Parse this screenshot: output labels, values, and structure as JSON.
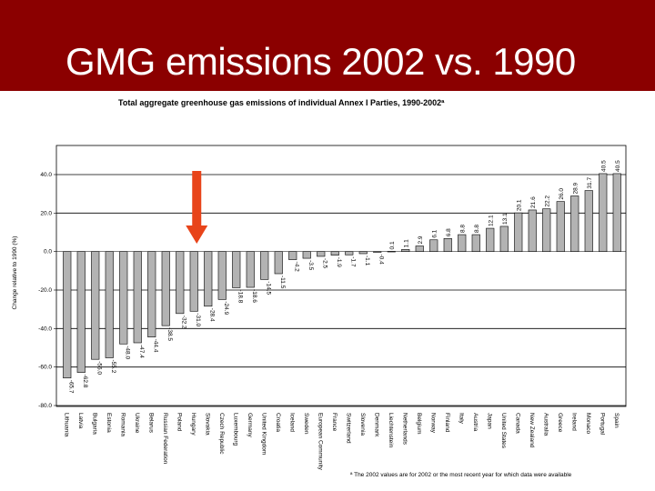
{
  "slide": {
    "title": "GMG emissions 2002 vs. 1990",
    "title_bar_color": "#8b0000"
  },
  "chart_data": {
    "type": "bar",
    "title": "Total aggregate greenhouse gas emissions of individual Annex I Parties, 1990-2002ª",
    "ylabel": "Change relative to 1990 (%)",
    "xlabel": "",
    "ylim": [
      -80,
      40
    ],
    "y_ticks": [
      "40.0",
      "20.0",
      "0.0",
      "-20.0",
      "-40.0",
      "-60.0",
      "-80.0"
    ],
    "y_tick_values": [
      40,
      20,
      0,
      -20,
      -40,
      -60,
      -80
    ],
    "grid": false,
    "bar_color": "#b3b3b3",
    "highlight_arrow_color": "#e8441a",
    "highlighted_category": "Hungary",
    "footnote": "ª The 2002 values are for 2002 or the most recent year for which data were available",
    "categories": [
      "Lithuania",
      "Latvia",
      "Bulgaria",
      "Estonia",
      "Romania",
      "Ukraine",
      "Belarus",
      "Russian Federation",
      "Poland",
      "Hungary",
      "Slovakia",
      "Czech Republic",
      "Luxembourg",
      "Germany",
      "United Kingdom",
      "Croatia",
      "Iceland",
      "Sweden",
      "European Community",
      "France",
      "Switzerland",
      "Slovenia",
      "Denmark",
      "Liechtenstein",
      "Netherlands",
      "Belgium",
      "Norway",
      "Finland",
      "Italy",
      "Austria",
      "Japan",
      "United States",
      "Canada",
      "New Zealand",
      "Australia",
      "Greece",
      "Ireland",
      "Monaco",
      "Portugal",
      "Spain"
    ],
    "values": [
      -65.7,
      -62.8,
      -56.0,
      -55.2,
      -48.0,
      -47.4,
      -44.4,
      -38.5,
      -32.2,
      -31.0,
      -28.4,
      -24.9,
      -18.8,
      -18.6,
      -14.5,
      -11.5,
      -4.2,
      -3.5,
      -2.5,
      -1.9,
      -1.7,
      -1.1,
      -0.4,
      0.1,
      1.1,
      2.9,
      6.1,
      6.8,
      8.8,
      8.8,
      12.1,
      13.1,
      20.1,
      21.6,
      22.2,
      26.0,
      28.9,
      31.7,
      40.5,
      40.5
    ],
    "value_labels": [
      "-65.7",
      "-62.8",
      "-56.0",
      "-55.2",
      "-48.0",
      "-47.4",
      "-44.4",
      "-38.5",
      "-32.2",
      "-31.0",
      "-28.4",
      "-24.9",
      "-18.8",
      "-18.6",
      "-14.5",
      "-11.5",
      "-4.2",
      "-3.5",
      "-2.5",
      "-1.9",
      "-1.7",
      "-1.1",
      "-0.4",
      "0.1",
      "1.1",
      "2.9",
      "6.1",
      "6.8",
      "8.8",
      "8.8",
      "12.1",
      "13.1",
      "20.1",
      "21.6",
      "22.2",
      "26.0",
      "28.9",
      "31.7",
      "40.5",
      "40.5"
    ]
  }
}
